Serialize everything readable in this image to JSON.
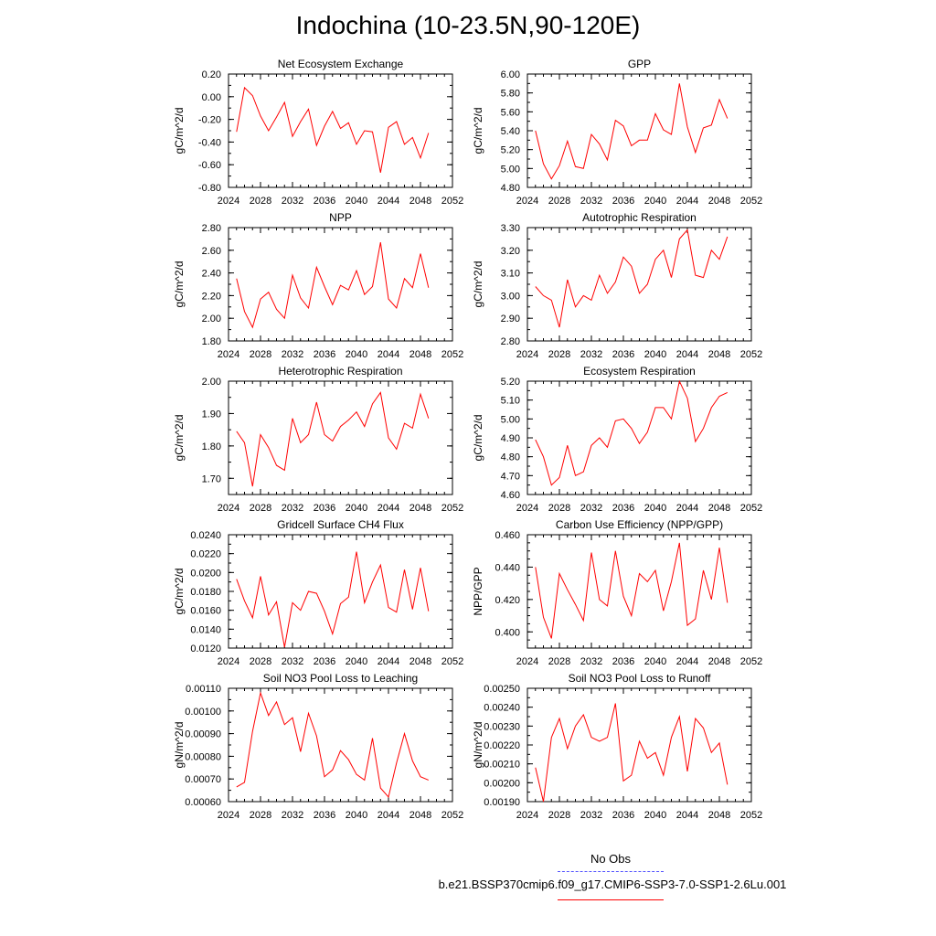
{
  "title": "Indochina (10-23.5N,90-120E)",
  "x_axis": {
    "min": 2024,
    "max": 2052,
    "ticks": [
      2024,
      2028,
      2032,
      2036,
      2040,
      2044,
      2048,
      2052
    ],
    "minor_step": 1
  },
  "years": [
    2025,
    2026,
    2027,
    2028,
    2029,
    2030,
    2031,
    2032,
    2033,
    2034,
    2035,
    2036,
    2037,
    2038,
    2039,
    2040,
    2041,
    2042,
    2043,
    2044,
    2045,
    2046,
    2047,
    2048,
    2049
  ],
  "line_color": "#ff0000",
  "legend": {
    "obs_label": "No Obs",
    "obs_color": "#5555ff",
    "model_label": "b.e21.BSSP370cmip6.f09_g17.CMIP6-SSP3-7.0-SSP1-2.6Lu.001",
    "model_color": "#ff0000"
  },
  "chart_data": [
    {
      "type": "line",
      "title": "Net Ecosystem Exchange",
      "ylabel": "gC/m^2/d",
      "ylim": [
        -0.8,
        0.2
      ],
      "yticks": [
        -0.8,
        -0.6,
        -0.4,
        -0.2,
        0.0,
        0.2
      ],
      "ytick_labels": [
        "-0.80",
        "-0.60",
        "-0.40",
        "-0.20",
        "0.00",
        "0.20"
      ],
      "yminor": 0.1,
      "values": [
        -0.31,
        0.08,
        0.01,
        -0.17,
        -0.3,
        -0.18,
        -0.05,
        -0.35,
        -0.22,
        -0.11,
        -0.43,
        -0.26,
        -0.13,
        -0.28,
        -0.23,
        -0.42,
        -0.3,
        -0.31,
        -0.67,
        -0.27,
        -0.22,
        -0.42,
        -0.36,
        -0.54,
        -0.32
      ]
    },
    {
      "type": "line",
      "title": "GPP",
      "ylabel": "gC/m^2/d",
      "ylim": [
        4.8,
        6.0
      ],
      "yticks": [
        4.8,
        5.0,
        5.2,
        5.4,
        5.6,
        5.8,
        6.0
      ],
      "ytick_labels": [
        "4.80",
        "5.00",
        "5.20",
        "5.40",
        "5.60",
        "5.80",
        "6.00"
      ],
      "yminor": 0.1,
      "values": [
        5.4,
        5.05,
        4.89,
        5.03,
        5.29,
        5.02,
        5.0,
        5.36,
        5.26,
        5.09,
        5.51,
        5.45,
        5.24,
        5.3,
        5.3,
        5.58,
        5.41,
        5.36,
        5.9,
        5.44,
        5.17,
        5.43,
        5.46,
        5.73,
        5.53
      ]
    },
    {
      "type": "line",
      "title": "NPP",
      "ylabel": "gC/m^2/d",
      "ylim": [
        1.8,
        2.8
      ],
      "yticks": [
        1.8,
        2.0,
        2.2,
        2.4,
        2.6,
        2.8
      ],
      "ytick_labels": [
        "1.80",
        "2.00",
        "2.20",
        "2.40",
        "2.60",
        "2.80"
      ],
      "yminor": 0.1,
      "values": [
        2.35,
        2.06,
        1.92,
        2.17,
        2.23,
        2.08,
        2.0,
        2.38,
        2.18,
        2.09,
        2.45,
        2.28,
        2.12,
        2.29,
        2.25,
        2.42,
        2.21,
        2.28,
        2.67,
        2.17,
        2.09,
        2.35,
        2.27,
        2.57,
        2.27
      ]
    },
    {
      "type": "line",
      "title": "Autotrophic Respiration",
      "ylabel": "gC/m^2/d",
      "ylim": [
        2.8,
        3.3
      ],
      "yticks": [
        2.8,
        2.9,
        3.0,
        3.1,
        3.2,
        3.3
      ],
      "ytick_labels": [
        "2.80",
        "2.90",
        "3.00",
        "3.10",
        "3.20",
        "3.30"
      ],
      "yminor": 0.05,
      "values": [
        3.04,
        3.0,
        2.98,
        2.86,
        3.07,
        2.95,
        3.0,
        2.98,
        3.09,
        3.01,
        3.06,
        3.17,
        3.13,
        3.01,
        3.05,
        3.16,
        3.2,
        3.08,
        3.25,
        3.29,
        3.09,
        3.08,
        3.2,
        3.16,
        3.26
      ]
    },
    {
      "type": "line",
      "title": "Heterotrophic Respiration",
      "ylabel": "gC/m^2/d",
      "ylim": [
        1.65,
        2.0
      ],
      "yticks": [
        1.7,
        1.8,
        1.9,
        2.0
      ],
      "ytick_labels": [
        "1.70",
        "1.80",
        "1.90",
        "2.00"
      ],
      "yminor": 0.05,
      "values": [
        1.845,
        1.81,
        1.675,
        1.835,
        1.795,
        1.74,
        1.725,
        1.885,
        1.81,
        1.835,
        1.935,
        1.835,
        1.815,
        1.86,
        1.88,
        1.905,
        1.86,
        1.93,
        1.965,
        1.825,
        1.79,
        1.87,
        1.855,
        1.96,
        1.885
      ]
    },
    {
      "type": "line",
      "title": "Ecosystem Respiration",
      "ylabel": "gC/m^2/d",
      "ylim": [
        4.6,
        5.2
      ],
      "yticks": [
        4.6,
        4.7,
        4.8,
        4.9,
        5.0,
        5.1,
        5.2
      ],
      "ytick_labels": [
        "4.60",
        "4.70",
        "4.80",
        "4.90",
        "5.00",
        "5.10",
        "5.20"
      ],
      "yminor": 0.05,
      "values": [
        4.89,
        4.8,
        4.65,
        4.69,
        4.86,
        4.7,
        4.72,
        4.86,
        4.9,
        4.85,
        4.99,
        5.0,
        4.95,
        4.87,
        4.93,
        5.06,
        5.06,
        5.0,
        5.2,
        5.11,
        4.88,
        4.95,
        5.06,
        5.12,
        5.14
      ]
    },
    {
      "type": "line",
      "title": "Gridcell Surface CH4 Flux",
      "ylabel": "gC/m^2/d",
      "ylim": [
        0.012,
        0.024
      ],
      "yticks": [
        0.012,
        0.014,
        0.016,
        0.018,
        0.02,
        0.022,
        0.024
      ],
      "ytick_labels": [
        "0.0120",
        "0.0140",
        "0.0160",
        "0.0180",
        "0.0200",
        "0.0220",
        "0.0240"
      ],
      "yminor": 0.001,
      "values": [
        0.0193,
        0.017,
        0.0152,
        0.0196,
        0.0155,
        0.0169,
        0.0121,
        0.0168,
        0.016,
        0.018,
        0.0178,
        0.0159,
        0.0135,
        0.0167,
        0.0174,
        0.0222,
        0.0168,
        0.019,
        0.0208,
        0.0163,
        0.0158,
        0.0203,
        0.0161,
        0.0205,
        0.0159
      ]
    },
    {
      "type": "line",
      "title": "Carbon Use Efficiency (NPP/GPP)",
      "ylabel": "NPP/GPP",
      "ylim": [
        0.39,
        0.46
      ],
      "yticks": [
        0.4,
        0.42,
        0.44,
        0.46
      ],
      "ytick_labels": [
        "0.400",
        "0.420",
        "0.440",
        "0.460"
      ],
      "yminor": 0.005,
      "values": [
        0.44,
        0.409,
        0.396,
        0.436,
        0.426,
        0.417,
        0.407,
        0.449,
        0.42,
        0.416,
        0.45,
        0.422,
        0.41,
        0.436,
        0.431,
        0.438,
        0.413,
        0.431,
        0.455,
        0.404,
        0.408,
        0.438,
        0.42,
        0.452,
        0.418
      ]
    },
    {
      "type": "line",
      "title": "Soil NO3 Pool Loss to Leaching",
      "ylabel": "gN/m^2/d",
      "ylim": [
        0.0006,
        0.0011
      ],
      "yticks": [
        0.0006,
        0.0007,
        0.0008,
        0.0009,
        0.001,
        0.0011
      ],
      "ytick_labels": [
        "0.00060",
        "0.00070",
        "0.00080",
        "0.00090",
        "0.00100",
        "0.00110"
      ],
      "yminor": 5e-05,
      "values": [
        0.000665,
        0.000685,
        0.00091,
        0.00108,
        0.00098,
        0.00104,
        0.00094,
        0.00097,
        0.00082,
        0.00099,
        0.00089,
        0.00071,
        0.00074,
        0.000825,
        0.000785,
        0.00072,
        0.000695,
        0.00088,
        0.00066,
        0.00062,
        0.00077,
        0.0009,
        0.00078,
        0.00071,
        0.000695
      ]
    },
    {
      "type": "line",
      "title": "Soil NO3 Pool Loss to Runoff",
      "ylabel": "gN/m^2/d",
      "ylim": [
        0.0019,
        0.0025
      ],
      "yticks": [
        0.0019,
        0.002,
        0.0021,
        0.0022,
        0.0023,
        0.0024,
        0.0025
      ],
      "ytick_labels": [
        "0.00190",
        "0.00200",
        "0.00210",
        "0.00220",
        "0.00230",
        "0.00240",
        "0.00250"
      ],
      "yminor": 5e-05,
      "values": [
        0.00208,
        0.0019,
        0.00224,
        0.00234,
        0.00218,
        0.0023,
        0.00236,
        0.00224,
        0.00222,
        0.00224,
        0.00242,
        0.00201,
        0.00204,
        0.00222,
        0.00213,
        0.00216,
        0.00204,
        0.00224,
        0.00235,
        0.00206,
        0.00234,
        0.00229,
        0.00216,
        0.00221,
        0.00199
      ]
    }
  ]
}
